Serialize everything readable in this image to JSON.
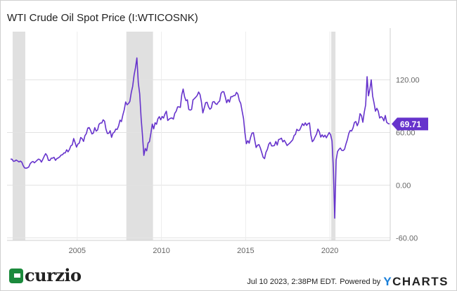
{
  "title": "WTI Crude Oil Spot Price (I:WTICOSNK)",
  "footer": {
    "timestamp": "Jul 10 2023, 2:38PM EDT.",
    "powered_by": "Powered by",
    "brand_y": "Y",
    "brand_rest": "CHARTS",
    "logo_text": "curzio"
  },
  "chart_data": {
    "type": "line",
    "title": "WTI Crude Oil Spot Price (I:WTICOSNK)",
    "xlabel": "",
    "ylabel": "",
    "x_ticks": [
      "2005",
      "2010",
      "2015",
      "2020"
    ],
    "y_ticks": [
      "120.00",
      "60.00",
      "0.00",
      "-60.00"
    ],
    "y_tick_values": [
      120,
      60,
      0,
      -60
    ],
    "ylim": [
      -63,
      175
    ],
    "xlim": [
      "2000-11",
      "2023-07"
    ],
    "y_axis_side": "right",
    "grid": true,
    "line_color": "#6633cc",
    "recession_color": "#e0e0e0",
    "recessions": [
      [
        "2001-03",
        "2001-11"
      ],
      [
        "2007-12",
        "2009-06"
      ],
      [
        "2020-02",
        "2020-04"
      ]
    ],
    "last_value_label": "69.71",
    "last_value": 69.71,
    "series_start": "2001-01",
    "frequency": "monthly",
    "values": [
      29.6,
      29.6,
      27.2,
      27.4,
      28.6,
      27.6,
      26.4,
      27.4,
      26.2,
      22.2,
      19.6,
      19.3,
      19.7,
      20.7,
      24.4,
      26.2,
      27.0,
      25.5,
      26.9,
      28.4,
      29.7,
      28.9,
      26.3,
      29.4,
      32.9,
      35.9,
      33.6,
      28.3,
      28.1,
      30.7,
      30.8,
      31.6,
      28.3,
      30.3,
      31.1,
      32.2,
      34.3,
      34.7,
      36.7,
      36.7,
      40.3,
      38.0,
      40.7,
      44.9,
      45.9,
      53.1,
      48.5,
      43.3,
      46.8,
      48.0,
      54.3,
      53.0,
      49.8,
      56.3,
      58.7,
      65.0,
      65.6,
      62.4,
      58.3,
      59.4,
      65.5,
      61.6,
      62.9,
      69.4,
      70.8,
      70.9,
      74.4,
      73.0,
      63.8,
      58.9,
      59.1,
      62.0,
      54.5,
      59.3,
      60.4,
      63.9,
      63.5,
      67.5,
      74.1,
      72.4,
      79.9,
      85.8,
      94.8,
      91.7,
      93.0,
      95.4,
      105.5,
      112.6,
      125.4,
      133.9,
      145.0,
      116.7,
      104.1,
      76.6,
      57.3,
      33.9,
      41.7,
      39.1,
      47.9,
      49.7,
      59.0,
      69.6,
      64.2,
      71.1,
      69.4,
      75.7,
      78.0,
      74.5,
      78.3,
      76.4,
      81.2,
      84.3,
      73.7,
      75.3,
      76.3,
      76.6,
      75.2,
      81.9,
      84.3,
      89.2,
      89.2,
      88.6,
      102.9,
      109.5,
      100.9,
      96.3,
      97.3,
      86.3,
      85.5,
      86.3,
      97.2,
      98.6,
      100.3,
      102.2,
      106.2,
      103.3,
      94.7,
      82.3,
      87.9,
      94.1,
      94.5,
      89.5,
      86.5,
      87.9,
      94.8,
      95.3,
      92.9,
      92.0,
      94.5,
      95.8,
      104.6,
      106.6,
      106.3,
      100.5,
      93.9,
      97.6,
      94.6,
      100.8,
      100.8,
      102.1,
      102.2,
      105.8,
      103.6,
      96.5,
      93.2,
      84.4,
      75.8,
      59.3,
      47.2,
      50.6,
      47.8,
      54.5,
      59.3,
      59.8,
      50.9,
      42.9,
      45.5,
      46.2,
      42.4,
      37.2,
      31.7,
      30.3,
      37.5,
      40.8,
      46.7,
      48.8,
      44.7,
      44.7,
      45.2,
      49.8,
      45.7,
      52.0,
      52.5,
      53.5,
      49.3,
      51.1,
      48.5,
      45.2,
      46.6,
      48.0,
      49.8,
      51.6,
      56.6,
      57.9,
      63.7,
      62.2,
      62.7,
      66.3,
      70.0,
      67.9,
      71.0,
      68.1,
      70.2,
      70.8,
      57.0,
      49.5,
      51.4,
      55.0,
      58.2,
      63.9,
      60.8,
      54.7,
      57.4,
      54.8,
      57.0,
      54.0,
      57.0,
      59.9,
      57.5,
      50.5,
      20.1,
      -37.6,
      28.6,
      38.3,
      40.7,
      42.3,
      39.6,
      39.4,
      41.0,
      47.0,
      52.0,
      59.0,
      62.3,
      61.7,
      65.2,
      71.4,
      72.5,
      67.7,
      71.6,
      81.5,
      79.2,
      71.7,
      83.2,
      91.6,
      123.7,
      101.8,
      109.6,
      120.0,
      101.6,
      93.7,
      84.3,
      87.6,
      84.4,
      76.4,
      78.1,
      76.8,
      73.3,
      79.4,
      71.6,
      70.3,
      69.71
    ]
  }
}
